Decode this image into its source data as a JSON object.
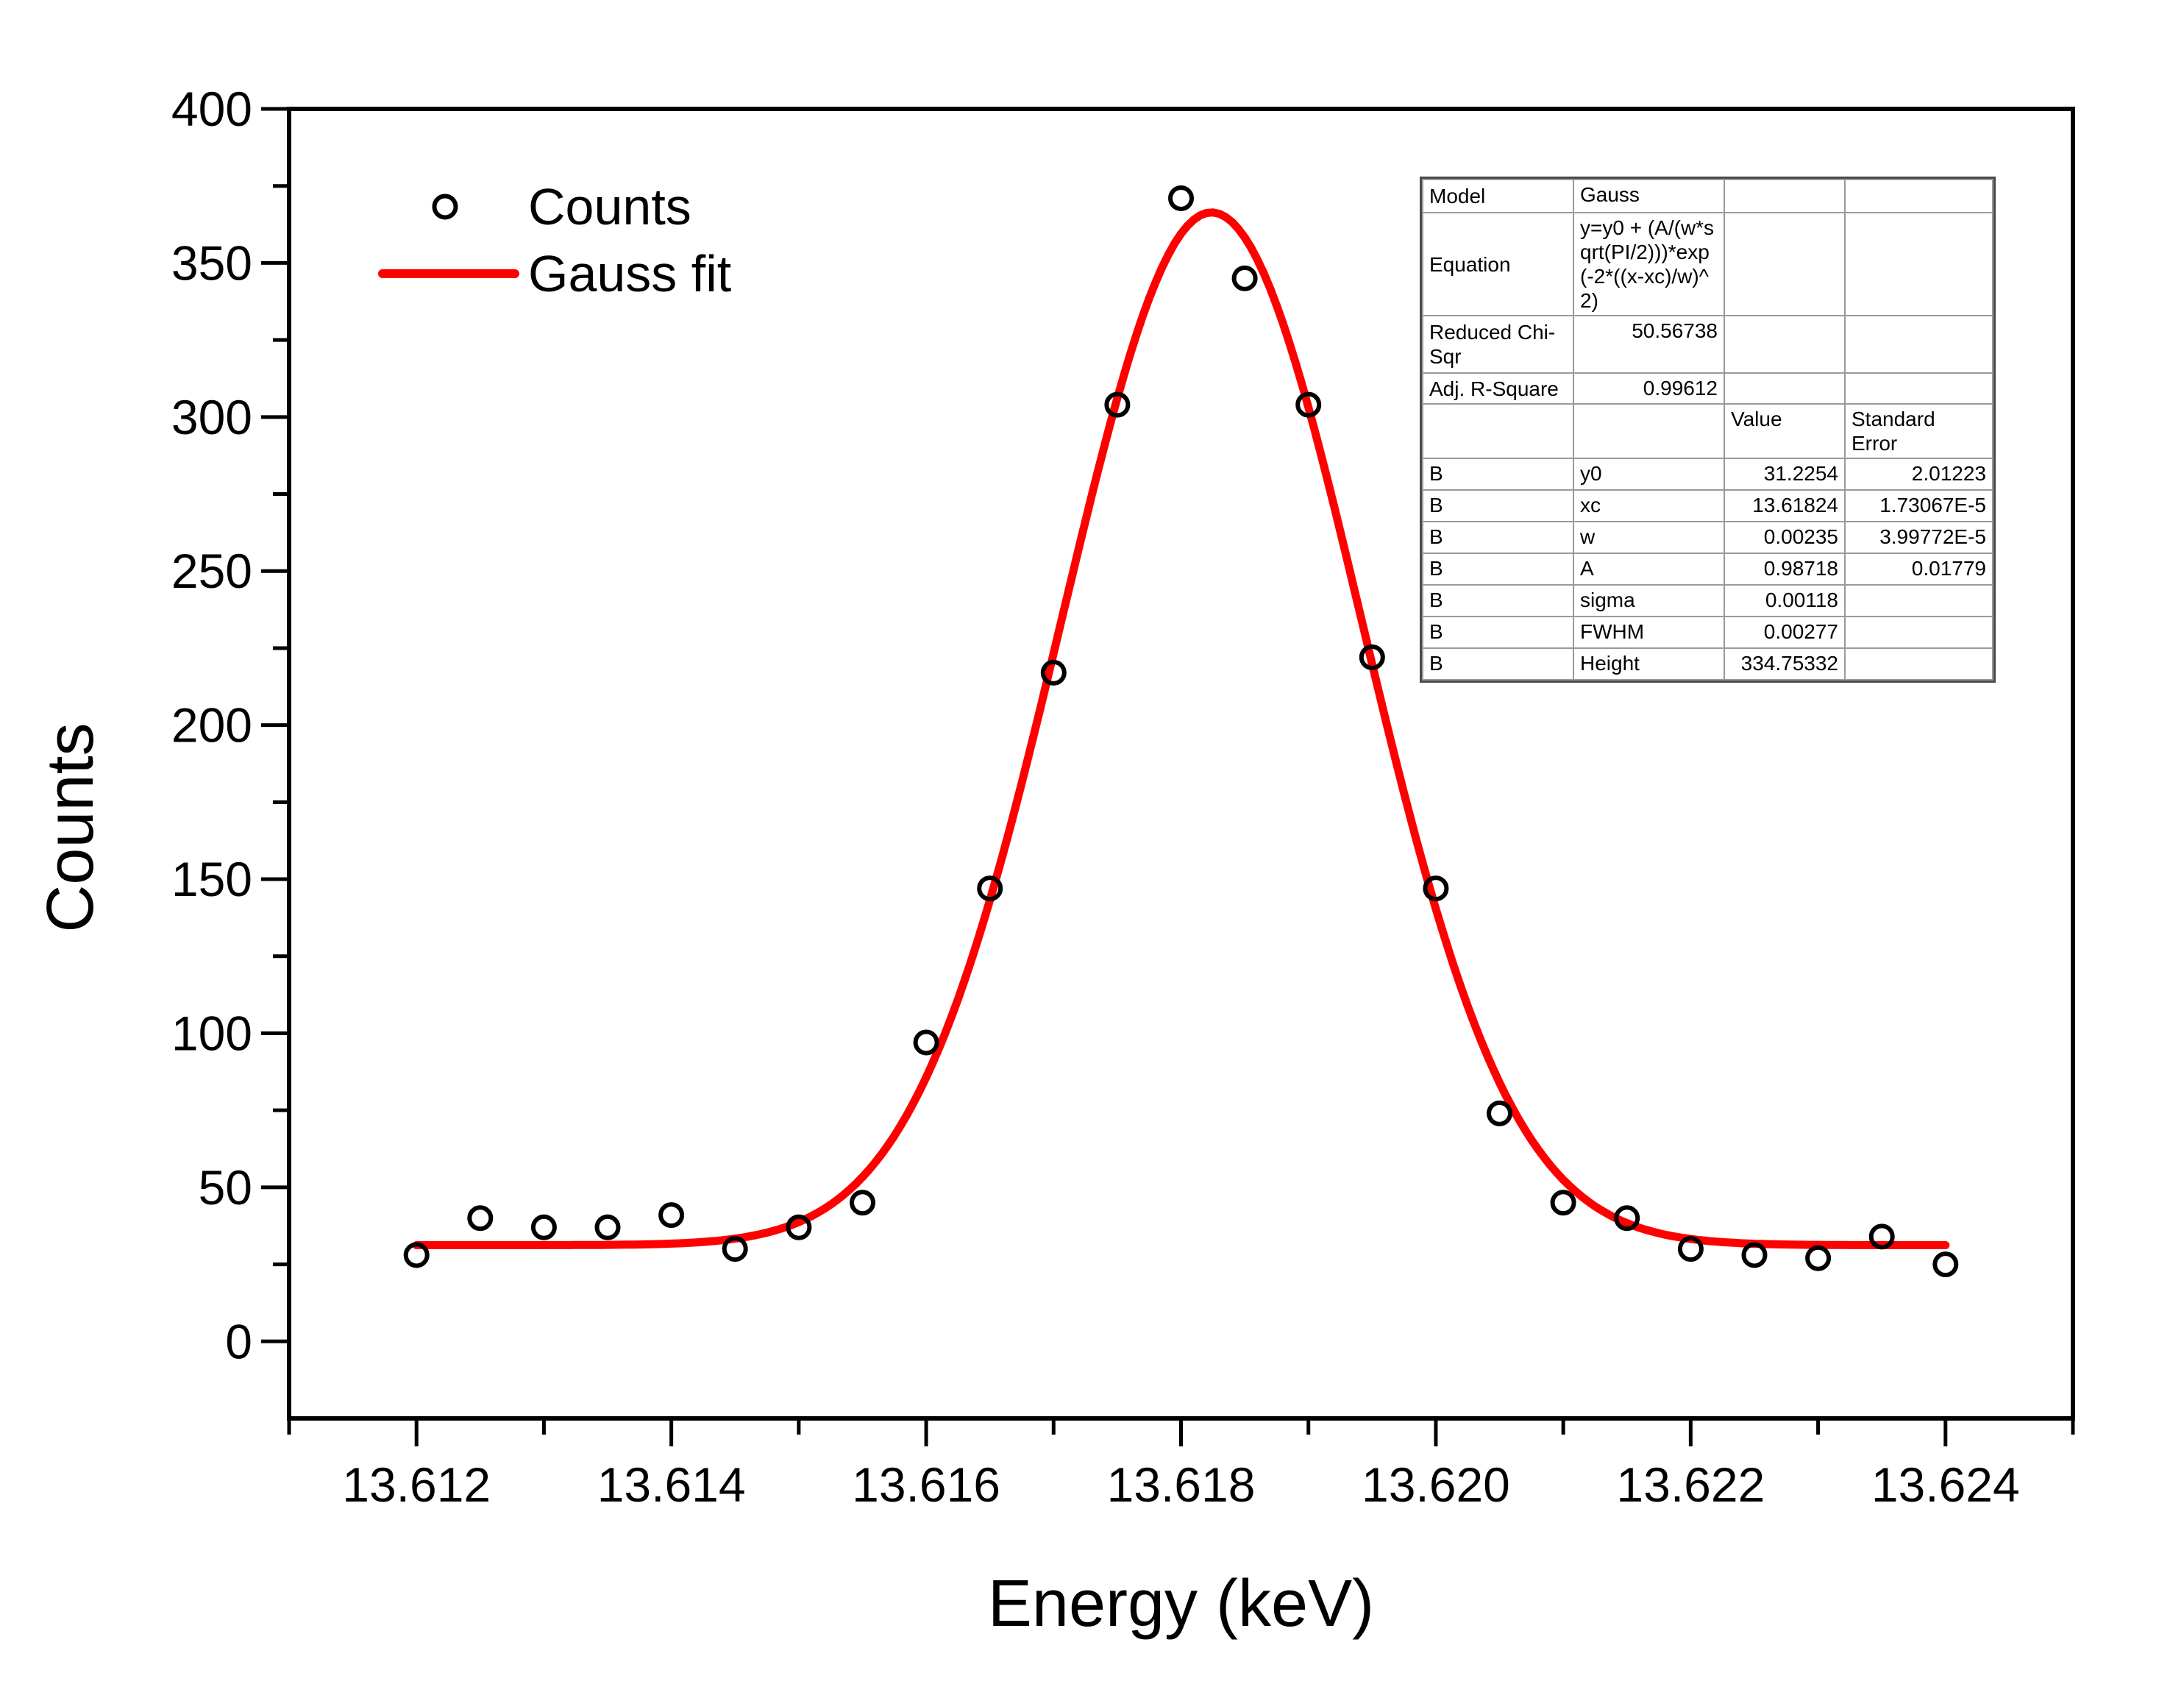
{
  "chart_data": {
    "type": "scatter",
    "title": "",
    "xlabel": "Energy (keV)",
    "ylabel": "Counts",
    "xlim": [
      13.611,
      13.625
    ],
    "ylim": [
      -25,
      400
    ],
    "grid": false,
    "legend": {
      "position": "top-left-inside",
      "items": [
        "Counts",
        "Gauss fit"
      ]
    },
    "x_major_ticks": [
      {
        "v": 13.612,
        "label": "13.612"
      },
      {
        "v": 13.614,
        "label": "13.614"
      },
      {
        "v": 13.616,
        "label": "13.616"
      },
      {
        "v": 13.618,
        "label": "13.618"
      },
      {
        "v": 13.62,
        "label": "13.620"
      },
      {
        "v": 13.622,
        "label": "13.622"
      },
      {
        "v": 13.624,
        "label": "13.624"
      }
    ],
    "x_minor_ticks": [
      13.611,
      13.613,
      13.615,
      13.617,
      13.619,
      13.621,
      13.623,
      13.625
    ],
    "y_major_ticks": [
      {
        "v": 0,
        "label": "0"
      },
      {
        "v": 50,
        "label": "50"
      },
      {
        "v": 100,
        "label": "100"
      },
      {
        "v": 150,
        "label": "150"
      },
      {
        "v": 200,
        "label": "200"
      },
      {
        "v": 250,
        "label": "250"
      },
      {
        "v": 300,
        "label": "300"
      },
      {
        "v": 350,
        "label": "350"
      },
      {
        "v": 400,
        "label": "400"
      }
    ],
    "y_minor_ticks": [
      25,
      75,
      125,
      175,
      225,
      275,
      325,
      375
    ],
    "series": [
      {
        "name": "Counts",
        "type": "scatter",
        "marker": "open-circle",
        "color": "#000000",
        "x": [
          13.612,
          13.6125,
          13.613,
          13.6135,
          13.614,
          13.6145,
          13.615,
          13.6155,
          13.616,
          13.6165,
          13.617,
          13.6175,
          13.618,
          13.6185,
          13.619,
          13.6195,
          13.62,
          13.6205,
          13.621,
          13.6215,
          13.622,
          13.6225,
          13.623,
          13.6235,
          13.624
        ],
        "y": [
          28,
          40,
          37,
          37,
          41,
          30,
          37,
          45,
          97,
          147,
          217,
          304,
          371,
          345,
          304,
          222,
          147,
          74,
          45,
          40,
          30,
          28,
          27,
          34,
          25
        ]
      },
      {
        "name": "Gauss fit",
        "type": "gauss-curve",
        "color": "#ff0000",
        "x_range": [
          13.612,
          13.624
        ],
        "params": {
          "y0": 31.2254,
          "xc": 13.61824,
          "w": 0.00235,
          "A": 0.98718
        }
      }
    ]
  },
  "fit_table": {
    "info_rows": [
      {
        "label": "Model",
        "value": "Gauss"
      },
      {
        "label": "Equation",
        "value": "y=y0 + (A/(w*sqrt(PI/2)))*exp(-2*((x-xc)/w)^2)"
      },
      {
        "label": "Reduced Chi-Sqr",
        "value": "50.56738"
      },
      {
        "label": "Adj. R-Square",
        "value": "0.99612"
      }
    ],
    "header": {
      "value_col": "Value",
      "stderr_col": "Standard Error"
    },
    "param_rows": [
      {
        "dataset": "B",
        "param": "y0",
        "value": "31.2254",
        "stderr": "2.01223"
      },
      {
        "dataset": "B",
        "param": "xc",
        "value": "13.61824",
        "stderr": "1.73067E-5"
      },
      {
        "dataset": "B",
        "param": "w",
        "value": "0.00235",
        "stderr": "3.99772E-5"
      },
      {
        "dataset": "B",
        "param": "A",
        "value": "0.98718",
        "stderr": "0.01779"
      },
      {
        "dataset": "B",
        "param": "sigma",
        "value": "0.00118",
        "stderr": ""
      },
      {
        "dataset": "B",
        "param": "FWHM",
        "value": "0.00277",
        "stderr": ""
      },
      {
        "dataset": "B",
        "param": "Height",
        "value": "334.75332",
        "stderr": ""
      }
    ]
  }
}
